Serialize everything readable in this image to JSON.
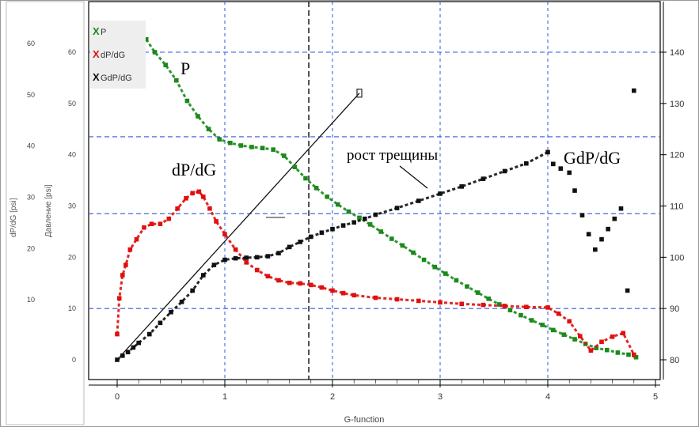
{
  "chart_data": {
    "type": "scatter",
    "xlabel": "G-function",
    "ylabel_left": "dP/dG [psi]",
    "ylabel_left2": "Давление [psi]",
    "xlim": [
      -0.1,
      5.0
    ],
    "ylim_left": [
      -5,
      70
    ],
    "ylim_right": [
      78,
      148
    ],
    "x_ticks": [
      0,
      1,
      2,
      3,
      4,
      5
    ],
    "y_left_ticks": [
      0,
      10,
      20,
      30,
      40,
      50,
      60
    ],
    "y_right_ticks": [
      80,
      90,
      100,
      110,
      120,
      130,
      140
    ],
    "grid": "dashed-blue",
    "vline_x": 1.78,
    "legend_position": "top-left",
    "series": [
      {
        "name": "P",
        "legend_label": "P",
        "marker": "X",
        "color": "#1a8a1a",
        "x": [
          0.27,
          0.35,
          0.45,
          0.55,
          0.65,
          0.75,
          0.85,
          0.95,
          1.05,
          1.15,
          1.25,
          1.35,
          1.45,
          1.55,
          1.65,
          1.75,
          1.85,
          1.95,
          2.05,
          2.15,
          2.25,
          2.35,
          2.45,
          2.55,
          2.65,
          2.75,
          2.85,
          2.95,
          3.05,
          3.15,
          3.25,
          3.35,
          3.45,
          3.55,
          3.65,
          3.75,
          3.85,
          3.95,
          4.05,
          4.15,
          4.25,
          4.35,
          4.45,
          4.55,
          4.65,
          4.75,
          4.82
        ],
        "y": [
          62.5,
          60,
          57.5,
          54.5,
          50.5,
          47.5,
          45,
          43,
          42.3,
          41.8,
          41.5,
          41.3,
          41,
          39.8,
          37.6,
          35.4,
          33.5,
          31.8,
          30.3,
          28.9,
          27.7,
          26.4,
          25,
          23.6,
          22.3,
          20.9,
          19.5,
          18.1,
          16.8,
          15.5,
          14.3,
          13.1,
          11.9,
          10.8,
          9.7,
          8.7,
          7.7,
          6.8,
          5.8,
          4.9,
          4.0,
          3.1,
          2.3,
          1.9,
          1.4,
          1.0,
          0.5
        ]
      },
      {
        "name": "dP/dG",
        "legend_label": "dP/dG",
        "marker": "X",
        "color": "#e01010",
        "x": [
          0.0,
          0.02,
          0.05,
          0.08,
          0.12,
          0.18,
          0.25,
          0.32,
          0.4,
          0.48,
          0.56,
          0.64,
          0.7,
          0.76,
          0.8,
          0.86,
          0.92,
          1.0,
          1.1,
          1.2,
          1.3,
          1.4,
          1.5,
          1.6,
          1.7,
          1.8,
          1.9,
          2.0,
          2.1,
          2.2,
          2.4,
          2.6,
          2.8,
          3.0,
          3.2,
          3.4,
          3.6,
          3.8,
          4.0,
          4.1,
          4.2,
          4.3,
          4.4,
          4.5,
          4.6,
          4.7,
          4.8
        ],
        "y": [
          5,
          12,
          16.5,
          18.5,
          21.5,
          23.5,
          25.8,
          26.5,
          26.5,
          27.5,
          29.5,
          31.5,
          32.5,
          32.8,
          31.8,
          29.5,
          27,
          24.5,
          21.5,
          19,
          17.5,
          16.3,
          15.5,
          15,
          14.9,
          14.6,
          14.1,
          13.5,
          13,
          12.6,
          12.1,
          11.8,
          11.5,
          11.2,
          10.9,
          10.7,
          10.5,
          10.3,
          10.2,
          9.0,
          7.5,
          4.6,
          1.8,
          3.5,
          4.5,
          5.2,
          1.0
        ]
      },
      {
        "name": "GdP/dG",
        "legend_label": "GdP/dG",
        "marker": "X",
        "color": "#111111",
        "x": [
          0.0,
          0.05,
          0.1,
          0.15,
          0.2,
          0.3,
          0.4,
          0.5,
          0.6,
          0.7,
          0.8,
          0.9,
          1.0,
          1.1,
          1.2,
          1.3,
          1.4,
          1.5,
          1.6,
          1.7,
          1.8,
          1.9,
          2.0,
          2.1,
          2.2,
          2.3,
          2.4,
          2.6,
          2.8,
          3.0,
          3.2,
          3.4,
          3.6,
          3.8,
          4.0,
          4.05,
          4.12,
          4.2,
          4.25,
          4.32,
          4.38,
          4.44,
          4.5,
          4.56,
          4.62,
          4.68,
          4.74,
          4.8
        ],
        "y": [
          0,
          0.8,
          1.5,
          2.4,
          3.3,
          5.0,
          7.2,
          9.3,
          11.3,
          13.5,
          16.5,
          18.5,
          19.5,
          19.8,
          19.9,
          20.0,
          20.2,
          20.8,
          22.0,
          23.0,
          24.0,
          24.8,
          25.5,
          26.2,
          26.8,
          27.5,
          28.3,
          29.6,
          31.0,
          32.4,
          33.8,
          35.3,
          36.8,
          38.3,
          40.5,
          38.2,
          37.3,
          36.5,
          33.0,
          28.2,
          24.5,
          21.5,
          23.5,
          25.5,
          27.5,
          29.5,
          13.5,
          52.5
        ]
      }
    ],
    "tangent_line": {
      "x": [
        0.0,
        2.25
      ],
      "y": [
        0.0,
        52.0
      ]
    },
    "annotations": [
      "P",
      "dP/dG",
      "рост трещины",
      "GdP/dG"
    ],
    "legend": [
      "P",
      "dP/dG",
      "GdP/dG"
    ]
  },
  "texts": {
    "ann_p": "P",
    "ann_dpdg": "dP/dG",
    "ann_growth": "рост трещины",
    "ann_gdpdg": "GdP/dG",
    "xlabel": "G-function",
    "ylabel_left": "dP/dG [psi]",
    "ylabel_left2": "Давление [psi]",
    "legend_mark": "X",
    "legend_p": "P",
    "legend_dpdg": "dP/dG",
    "legend_gdpdg": "GdP/dG"
  },
  "colors": {
    "grid": "#3355dd",
    "p": "#1a8a1a",
    "dpdg": "#e01010",
    "gdpdg": "#111111"
  }
}
